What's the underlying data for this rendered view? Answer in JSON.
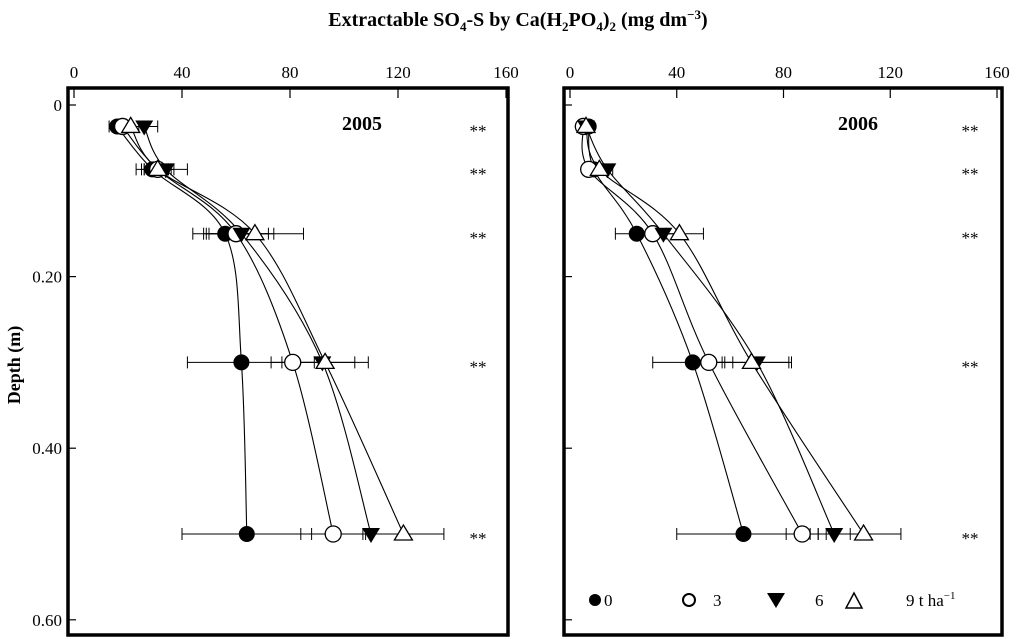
{
  "chart_data": [
    {
      "type": "line",
      "panel": "2005",
      "title": "Extractable SO4-S by Ca(H2PO4)2 (mg dm-3)",
      "xlabel": "Extractable SO4-S by Ca(H2PO4)2 (mg dm-3)",
      "ylabel": "Depth (m)",
      "xlim": [
        0,
        160
      ],
      "ylim": [
        0.6,
        0
      ],
      "x_ticks": [
        0,
        40,
        80,
        120,
        160
      ],
      "y_ticks": [
        0,
        0.2,
        0.4,
        0.6
      ],
      "depths": [
        0.025,
        0.075,
        0.15,
        0.3,
        0.5
      ],
      "series": [
        {
          "name": "0",
          "marker": "filled-circle",
          "values": [
            16,
            29,
            56,
            62,
            64
          ],
          "err": [
            3,
            6,
            12,
            20,
            24
          ]
        },
        {
          "name": "3",
          "marker": "open-circle",
          "values": [
            18,
            31,
            60,
            81,
            96
          ],
          "err": [
            3,
            6,
            12,
            8,
            12
          ]
        },
        {
          "name": "6",
          "marker": "filled-triangle-down",
          "values": [
            26,
            34,
            62,
            92,
            110
          ],
          "err": [
            5,
            8,
            12,
            12,
            12
          ]
        },
        {
          "name": "9 t ha-1",
          "marker": "open-triangle-up",
          "values": [
            21,
            31,
            67,
            93,
            122
          ],
          "err": [
            3,
            5,
            18,
            16,
            15
          ]
        }
      ],
      "annotations": [
        "**",
        "**",
        "**",
        "**",
        "**"
      ],
      "legend_position": "none"
    },
    {
      "type": "line",
      "panel": "2006",
      "xlim": [
        0,
        160
      ],
      "ylim": [
        0.6,
        0
      ],
      "x_ticks": [
        0,
        40,
        80,
        120,
        160
      ],
      "y_ticks": [
        0,
        0.2,
        0.4,
        0.6
      ],
      "depths": [
        0.025,
        0.075,
        0.15,
        0.3,
        0.5
      ],
      "series": [
        {
          "name": "0",
          "marker": "filled-circle",
          "values": [
            7,
            9,
            25,
            46,
            65
          ],
          "err": [
            1,
            2,
            8,
            15,
            25
          ]
        },
        {
          "name": "3",
          "marker": "open-circle",
          "values": [
            5,
            7,
            31,
            52,
            87
          ],
          "err": [
            1,
            2,
            5,
            6,
            6
          ]
        },
        {
          "name": "6",
          "marker": "filled-triangle-down",
          "values": [
            6,
            14,
            35,
            70,
            99
          ],
          "err": [
            1,
            2,
            5,
            13,
            6
          ]
        },
        {
          "name": "9 t ha-1",
          "marker": "open-triangle-up",
          "values": [
            6,
            11,
            41,
            68,
            110
          ],
          "err": [
            1,
            2,
            9,
            14,
            14
          ]
        }
      ],
      "annotations": [
        "**",
        "**",
        "**",
        "**",
        "**"
      ],
      "legend_position": "bottom-inside"
    }
  ],
  "labels": {
    "title_main": "Extractable SO",
    "title_sub4": "4",
    "title_mid": "-S by Ca(H",
    "title_sub2": "2",
    "title_po": "PO",
    "title_sub4b": "4",
    "title_close": ")",
    "title_sub2b": "2",
    "title_units": " (mg dm",
    "title_sup": "−3",
    "title_end": ")",
    "ylabel": "Depth  (m)",
    "year_left": "2005",
    "year_right": "2006",
    "x_ticks": [
      "0",
      "40",
      "80",
      "120",
      "160"
    ],
    "y_ticks": [
      "0",
      "0.20",
      "0.40",
      "0.60"
    ],
    "star": "**",
    "legend": {
      "l0": "0",
      "l3": "3",
      "l6": "6",
      "l9": "9 t ha",
      "l9_sup": "−1"
    }
  }
}
